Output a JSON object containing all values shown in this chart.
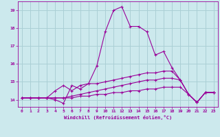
{
  "xlabel": "Windchill (Refroidissement éolien,°C)",
  "background_color": "#cce9ed",
  "grid_color": "#aacfd5",
  "line_color": "#990099",
  "x_hours": [
    0,
    1,
    2,
    3,
    4,
    5,
    6,
    7,
    8,
    9,
    10,
    11,
    12,
    13,
    14,
    15,
    16,
    17,
    18,
    19,
    20,
    21,
    22,
    23
  ],
  "line1": [
    14.1,
    14.1,
    14.1,
    14.1,
    14.0,
    13.8,
    14.8,
    14.6,
    14.9,
    15.9,
    17.8,
    19.0,
    19.2,
    18.1,
    18.1,
    17.8,
    16.5,
    16.7,
    15.8,
    15.1,
    14.3,
    13.85,
    14.4,
    14.4
  ],
  "line2": [
    14.1,
    14.1,
    14.1,
    14.1,
    14.5,
    14.8,
    14.5,
    14.8,
    14.9,
    14.9,
    15.0,
    15.1,
    15.2,
    15.3,
    15.4,
    15.5,
    15.5,
    15.6,
    15.6,
    15.1,
    14.3,
    13.85,
    14.4,
    14.4
  ],
  "line3": [
    14.1,
    14.1,
    14.1,
    14.1,
    14.1,
    14.1,
    14.2,
    14.3,
    14.4,
    14.5,
    14.6,
    14.7,
    14.8,
    14.9,
    15.0,
    15.1,
    15.1,
    15.2,
    15.2,
    15.1,
    14.3,
    13.85,
    14.4,
    14.4
  ],
  "line4": [
    14.1,
    14.1,
    14.1,
    14.1,
    14.1,
    14.1,
    14.1,
    14.2,
    14.2,
    14.3,
    14.3,
    14.4,
    14.4,
    14.5,
    14.5,
    14.6,
    14.6,
    14.7,
    14.7,
    14.7,
    14.3,
    13.85,
    14.4,
    14.4
  ],
  "ylim": [
    13.6,
    19.5
  ],
  "yticks": [
    14,
    15,
    16,
    17,
    18,
    19
  ],
  "xlim": [
    -0.5,
    23.5
  ]
}
